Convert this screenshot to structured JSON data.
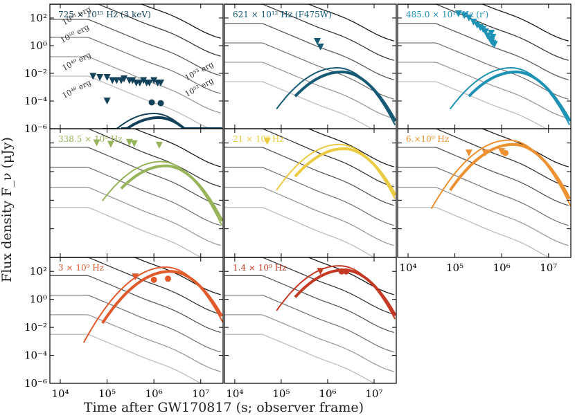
{
  "figure": {
    "xlabel": "Time after GW170817 (s; observer frame)",
    "ylabel": "Flux density F_ν (μJy)"
  },
  "chart_data": [
    {
      "type": "line",
      "panel": "725 × 10^15 Hz (3 keV)",
      "title": "725 × 10¹⁵ Hz (3 keV)",
      "color": "#14425a",
      "xscale": "log",
      "yscale": "log",
      "xlim": [
        6000,
        30000000
      ],
      "ylim": [
        1e-06,
        1000
      ],
      "x_ticks": [],
      "y_ticks": [
        "10²",
        "10⁰",
        "10⁻²",
        "10⁻⁴",
        "10⁻⁶"
      ],
      "grid_labels": [
        {
          "text": "10⁵¹ erg",
          "x": 12000,
          "y": 30
        },
        {
          "text": "10⁵⁰ erg",
          "x": 11000,
          "y": 1.5
        },
        {
          "text": "10⁴⁹ erg",
          "x": 12000,
          "y": 0.015
        },
        {
          "text": "10⁴⁸ erg",
          "x": 12000,
          "y": 0.00015
        },
        {
          "text": "10⁵³ erg",
          "x": 5000000,
          "y": 0.003
        },
        {
          "text": "10⁵² erg",
          "x": 5000000,
          "y": 0.0002
        }
      ],
      "upper_limits": [
        [
          50000,
          0.006
        ],
        [
          70000,
          0.005
        ],
        [
          100000,
          0.005
        ],
        [
          130000,
          0.003
        ],
        [
          160000,
          0.003
        ],
        [
          200000,
          0.003
        ],
        [
          230000,
          0.004
        ],
        [
          300000,
          0.003
        ],
        [
          350000,
          0.003
        ],
        [
          420000,
          0.002
        ],
        [
          500000,
          0.002
        ],
        [
          600000,
          0.003
        ],
        [
          700000,
          0.002
        ],
        [
          800000,
          0.002
        ],
        [
          1000000,
          0.003
        ],
        [
          1200000,
          0.002
        ],
        [
          1400000,
          0.002
        ],
        [
          100000,
          0.0001
        ]
      ],
      "detections": [
        [
          900000,
          8e-05
        ],
        [
          1400000,
          7e-05
        ]
      ]
    },
    {
      "type": "line",
      "panel": "621 × 10^12 Hz (F475W)",
      "title": "621 × 10¹² Hz (F475W)",
      "color": "#165a76",
      "xscale": "log",
      "yscale": "log",
      "xlim": [
        6000,
        30000000
      ],
      "ylim": [
        1e-06,
        1000
      ],
      "upper_limits": [
        [
          600000,
          2
        ],
        [
          700000,
          0.8
        ]
      ],
      "detections": []
    },
    {
      "type": "line",
      "panel": "485.0 × 10^12 Hz (r')",
      "title": "485.0 × 10¹² Hz (r′)",
      "color": "#1e92b4",
      "xscale": "log",
      "yscale": "log",
      "xlim": [
        6000,
        30000000
      ],
      "ylim": [
        1e-06,
        1000
      ],
      "upper_limits": [
        [
          120000,
          200
        ],
        [
          160000,
          150
        ],
        [
          200000,
          100
        ],
        [
          250000,
          50
        ],
        [
          300000,
          30
        ],
        [
          350000,
          20
        ],
        [
          400000,
          15
        ],
        [
          450000,
          10
        ],
        [
          500000,
          5
        ],
        [
          560000,
          3
        ],
        [
          600000,
          2
        ],
        [
          650000,
          1.5
        ],
        [
          700000,
          1.2
        ],
        [
          650000,
          4
        ],
        [
          600000,
          8
        ]
      ],
      "detections": []
    },
    {
      "type": "line",
      "panel": "338.5 × 10^9 Hz",
      "title": "338.5 × 10⁹ Hz",
      "color": "#98b45a",
      "xscale": "log",
      "yscale": "log",
      "xlim": [
        6000,
        30000000
      ],
      "ylim": [
        1e-06,
        1000
      ],
      "upper_limits": [
        [
          60000,
          100
        ],
        [
          120000,
          80
        ],
        [
          300000,
          110
        ],
        [
          380000,
          90
        ],
        [
          1300000,
          70
        ]
      ],
      "detections": []
    },
    {
      "type": "line",
      "panel": "21 × 10^9 Hz",
      "title": "21 × 10⁹ Hz",
      "color": "#ebcb42",
      "xscale": "log",
      "yscale": "log",
      "xlim": [
        6000,
        30000000
      ],
      "ylim": [
        1e-06,
        1000
      ],
      "upper_limits": [
        [
          50000,
          130
        ]
      ],
      "detections": []
    },
    {
      "type": "line",
      "panel": "6 × 10^9 Hz",
      "title": "6.×10⁹ Hz",
      "color": "#ec9030",
      "xscale": "log",
      "yscale": "log",
      "xlim": [
        6000,
        30000000
      ],
      "ylim": [
        1e-06,
        1000
      ],
      "x_ticks": [
        "10⁴",
        "10⁵",
        "10⁶",
        "10⁷"
      ],
      "upper_limits": [
        [
          200000,
          20
        ],
        [
          450000,
          20
        ],
        [
          1000000,
          25
        ]
      ],
      "detections": [
        [
          1200000,
          20
        ]
      ]
    },
    {
      "type": "line",
      "panel": "3 × 10^9 Hz",
      "title": "3 × 10⁹ Hz",
      "color": "#e05a2c",
      "xscale": "log",
      "yscale": "log",
      "xlim": [
        6000,
        30000000
      ],
      "ylim": [
        1e-06,
        1000
      ],
      "x_ticks": [
        "10⁴",
        "10⁵",
        "10⁶",
        "10⁷"
      ],
      "y_ticks": [
        "10²",
        "10⁰",
        "10⁻²",
        "10⁻⁴",
        "10⁻⁶"
      ],
      "upper_limits": [
        [
          400000,
          40
        ]
      ],
      "detections": [
        [
          1000000,
          25
        ],
        [
          2000000,
          30
        ]
      ]
    },
    {
      "type": "line",
      "panel": "1.4 × 10^9 Hz",
      "title": "1.4 × 10⁹ Hz",
      "color": "#c43a24",
      "xscale": "log",
      "yscale": "log",
      "xlim": [
        6000,
        30000000
      ],
      "ylim": [
        1e-06,
        1000
      ],
      "x_ticks": [
        "10⁴",
        "10⁵",
        "10⁶",
        "10⁷"
      ],
      "upper_limits": [
        [
          700000,
          100
        ]
      ],
      "detections": [
        [
          2000000,
          100
        ],
        [
          2500000,
          100
        ]
      ]
    }
  ]
}
